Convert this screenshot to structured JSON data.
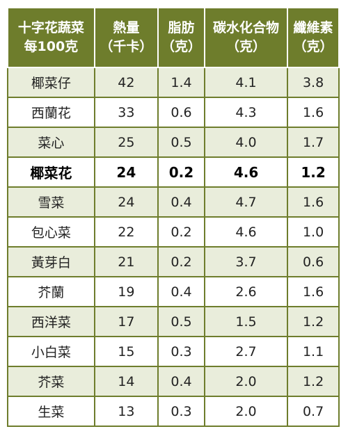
{
  "header": {
    "veg": [
      "十字花蔬菜",
      "每100克"
    ],
    "calories": [
      "熱量",
      "（千卡）"
    ],
    "fat": [
      "脂肪",
      "（克）"
    ],
    "carbs": [
      "碳水化合物",
      "（克）"
    ],
    "fiber": [
      "纖維素",
      "（克）"
    ]
  },
  "rows": [
    {
      "name": "椰菜仔",
      "calories": "42",
      "fat": "1.4",
      "carbs": "4.1",
      "fiber": "3.8"
    },
    {
      "name": "西蘭花",
      "calories": "33",
      "fat": "0.6",
      "carbs": "4.3",
      "fiber": "1.6"
    },
    {
      "name": "菜心",
      "calories": "25",
      "fat": "0.5",
      "carbs": "4.0",
      "fiber": "1.7"
    },
    {
      "name": "椰菜花",
      "calories": "24",
      "fat": "0.2",
      "carbs": "4.6",
      "fiber": "1.2",
      "highlight": true
    },
    {
      "name": "雪菜",
      "calories": "24",
      "fat": "0.4",
      "carbs": "4.7",
      "fiber": "1.6"
    },
    {
      "name": "包心菜",
      "calories": "22",
      "fat": "0.2",
      "carbs": "4.6",
      "fiber": "1.0"
    },
    {
      "name": "黃芽白",
      "calories": "21",
      "fat": "0.2",
      "carbs": "3.7",
      "fiber": "0.6"
    },
    {
      "name": "芥蘭",
      "calories": "19",
      "fat": "0.4",
      "carbs": "2.6",
      "fiber": "1.6"
    },
    {
      "name": "西洋菜",
      "calories": "17",
      "fat": "0.5",
      "carbs": "1.5",
      "fiber": "1.2"
    },
    {
      "name": "小白菜",
      "calories": "15",
      "fat": "0.3",
      "carbs": "2.7",
      "fiber": "1.1"
    },
    {
      "name": "芥菜",
      "calories": "14",
      "fat": "0.4",
      "carbs": "2.0",
      "fiber": "1.2"
    },
    {
      "name": "生菜",
      "calories": "13",
      "fat": "0.3",
      "carbs": "2.0",
      "fiber": "0.7"
    }
  ],
  "colors": {
    "header_bg": "#6e7d2c",
    "header_text": "#ffffff",
    "odd_row_bg": "#e9eddb",
    "even_row_bg": "#ffffff",
    "grid": "#6e7d2c"
  }
}
